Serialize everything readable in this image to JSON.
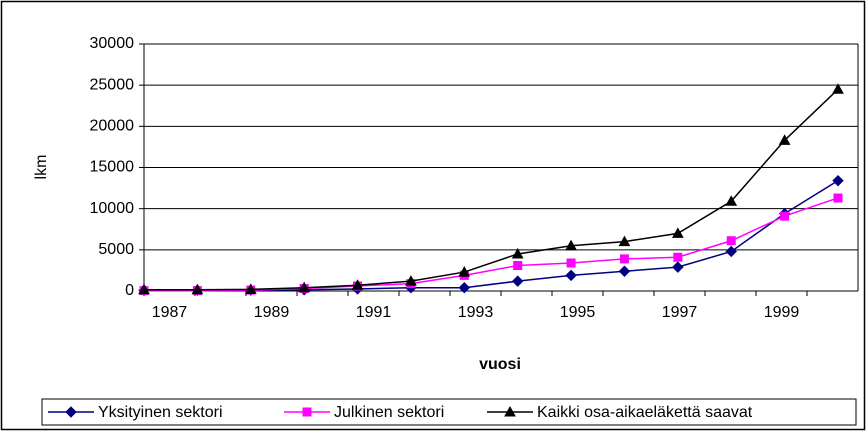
{
  "chart_data": {
    "type": "line",
    "x_label": "vuosi",
    "y_label": "lkm",
    "categories": [
      "1987",
      null,
      "1989",
      null,
      "1991",
      null,
      "1993",
      null,
      "1995",
      null,
      "1997",
      null,
      "1999",
      null
    ],
    "series": [
      {
        "name": "Yksityinen sektori",
        "color": "#000080",
        "marker": "diamond",
        "values": [
          100,
          100,
          100,
          150,
          250,
          400,
          400,
          1200,
          1900,
          2400,
          2900,
          4800,
          9400,
          13400
        ]
      },
      {
        "name": "Julkinen sektori",
        "color": "#ff00ff",
        "marker": "square",
        "values": [
          50,
          50,
          100,
          300,
          600,
          900,
          1900,
          3100,
          3400,
          3900,
          4100,
          6100,
          9100,
          11300
        ]
      },
      {
        "name": "Kaikki osa-aikaeläkettä saavat",
        "color": "#000000",
        "marker": "triangle",
        "values": [
          150,
          150,
          200,
          400,
          700,
          1200,
          2300,
          4500,
          5500,
          6000,
          7000,
          10900,
          18300,
          24500
        ]
      }
    ],
    "ylim": [
      0,
      30000
    ],
    "yticks": [
      0,
      5000,
      10000,
      15000,
      20000,
      25000,
      30000
    ],
    "grid": true,
    "legend": "bottom"
  }
}
